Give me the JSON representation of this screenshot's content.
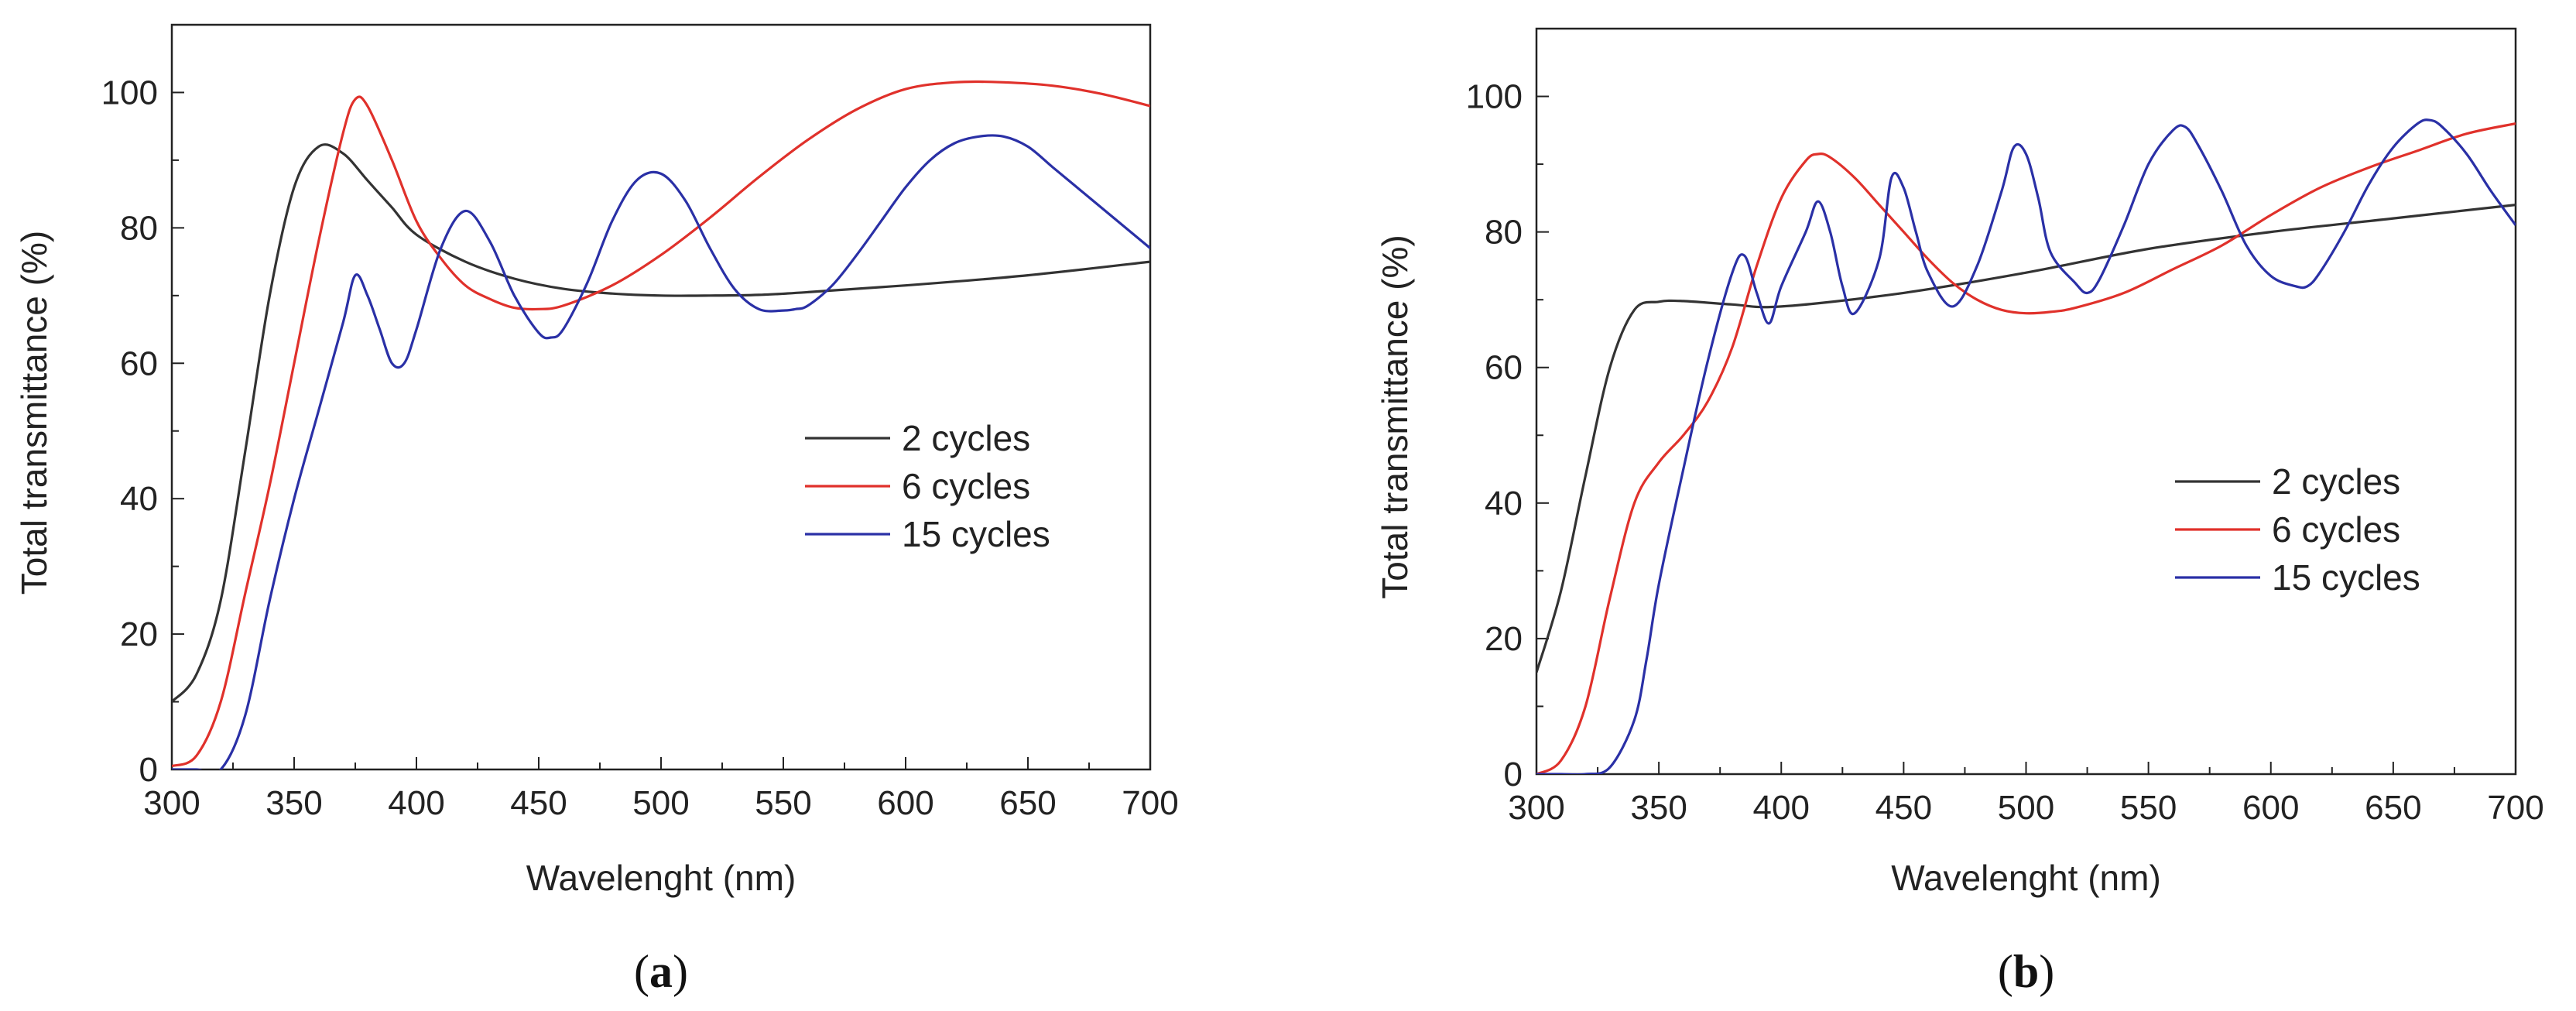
{
  "chart_data": [
    {
      "type": "line",
      "panel_label": "a",
      "xlabel": "Wavelenght (nm)",
      "ylabel": "Total transmittance (%)",
      "xlim": [
        300,
        700
      ],
      "ylim": [
        0,
        110
      ],
      "xticks": [
        300,
        350,
        400,
        450,
        500,
        550,
        600,
        650,
        700
      ],
      "yticks": [
        0,
        20,
        40,
        60,
        80,
        100
      ],
      "legend_position": "center-right",
      "grid": false,
      "series": [
        {
          "name": "2 cycles",
          "color": "#333333",
          "x": [
            300,
            310,
            320,
            330,
            340,
            350,
            360,
            370,
            380,
            390,
            400,
            420,
            440,
            460,
            480,
            500,
            520,
            540,
            560,
            600,
            650,
            700
          ],
          "y": [
            10,
            14,
            25,
            47,
            70,
            86,
            92,
            91,
            87,
            83,
            79,
            75,
            72.5,
            71,
            70.3,
            70,
            70,
            70.1,
            70.5,
            71.5,
            73,
            75
          ]
        },
        {
          "name": "6 cycles",
          "color": "#e0312b",
          "x": [
            300,
            310,
            320,
            330,
            340,
            350,
            360,
            370,
            375,
            380,
            390,
            400,
            410,
            420,
            430,
            440,
            450,
            460,
            480,
            500,
            520,
            540,
            560,
            580,
            600,
            620,
            640,
            660,
            680,
            700
          ],
          "y": [
            0.5,
            2,
            10,
            26,
            42,
            60,
            78,
            94,
            99,
            98,
            90,
            81,
            75.5,
            71.5,
            69.5,
            68.2,
            68,
            68.5,
            71.5,
            76,
            81.5,
            87.5,
            93,
            97.5,
            100.5,
            101.5,
            101.5,
            101,
            99.8,
            98
          ]
        },
        {
          "name": "15 cycles",
          "color": "#2a30a6",
          "x": [
            300,
            310,
            320,
            330,
            340,
            350,
            360,
            370,
            375,
            380,
            385,
            390,
            395,
            400,
            410,
            420,
            430,
            440,
            450,
            455,
            460,
            470,
            480,
            490,
            500,
            510,
            520,
            530,
            540,
            550,
            555,
            560,
            570,
            580,
            590,
            600,
            610,
            620,
            630,
            640,
            650,
            660,
            670,
            680,
            690,
            700
          ],
          "y": [
            0,
            0,
            0,
            8,
            25,
            40,
            53,
            66,
            73,
            70,
            65,
            60,
            60,
            65,
            77,
            82.5,
            78,
            70,
            64.5,
            63.8,
            65,
            72,
            81,
            87,
            88,
            84,
            77,
            71,
            68,
            67.8,
            68,
            68.5,
            71.5,
            76,
            81,
            86,
            90,
            92.5,
            93.5,
            93.5,
            92,
            89,
            86,
            83,
            80,
            77
          ]
        }
      ]
    },
    {
      "type": "line",
      "panel_label": "b",
      "xlabel": "Wavelenght (nm)",
      "ylabel": "Total transmittance (%)",
      "xlim": [
        300,
        700
      ],
      "ylim": [
        0,
        110
      ],
      "xticks": [
        300,
        350,
        400,
        450,
        500,
        550,
        600,
        650,
        700
      ],
      "yticks": [
        0,
        20,
        40,
        60,
        80,
        100
      ],
      "legend_position": "center-right",
      "grid": false,
      "series": [
        {
          "name": "2 cycles",
          "color": "#333333",
          "x": [
            300,
            310,
            320,
            330,
            340,
            350,
            360,
            380,
            400,
            450,
            500,
            550,
            600,
            650,
            700
          ],
          "y": [
            15,
            27,
            44,
            60,
            68.5,
            69.7,
            69.8,
            69.3,
            69,
            71,
            74,
            77.5,
            80,
            82,
            84
          ]
        },
        {
          "name": "6 cycles",
          "color": "#e0312b",
          "x": [
            300,
            310,
            320,
            330,
            340,
            350,
            360,
            370,
            380,
            390,
            400,
            410,
            415,
            420,
            430,
            440,
            450,
            460,
            470,
            480,
            490,
            500,
            510,
            520,
            540,
            560,
            580,
            600,
            620,
            640,
            660,
            680,
            700
          ],
          "y": [
            0,
            2,
            10,
            26,
            40,
            46,
            50,
            55,
            63,
            75,
            85,
            90.5,
            91.5,
            91,
            88,
            84,
            80,
            76,
            72.5,
            70,
            68.5,
            68,
            68.2,
            68.8,
            71,
            74.5,
            78,
            82.5,
            86.5,
            89.5,
            92,
            94.5,
            96
          ]
        },
        {
          "name": "15 cycles",
          "color": "#2a30a6",
          "x": [
            300,
            310,
            320,
            330,
            340,
            345,
            350,
            360,
            370,
            380,
            385,
            390,
            395,
            400,
            410,
            415,
            420,
            425,
            430,
            440,
            445,
            450,
            455,
            460,
            470,
            480,
            490,
            495,
            500,
            505,
            510,
            520,
            525,
            530,
            540,
            550,
            560,
            565,
            570,
            580,
            590,
            600,
            610,
            615,
            620,
            630,
            640,
            650,
            660,
            665,
            670,
            680,
            690,
            700
          ],
          "y": [
            0,
            0,
            0,
            1,
            8,
            17,
            28,
            45,
            61,
            74,
            76.5,
            71,
            66.5,
            72,
            80,
            84.5,
            80,
            72,
            68,
            76,
            88,
            86.5,
            80,
            74,
            69,
            75,
            86,
            92.5,
            91.5,
            85,
            77,
            72.5,
            71,
            73,
            81,
            90,
            95,
            95.5,
            93,
            86,
            78,
            73.5,
            72,
            72,
            74,
            80,
            87,
            92.5,
            96,
            96.5,
            95.5,
            91.5,
            86,
            81
          ]
        }
      ]
    }
  ]
}
